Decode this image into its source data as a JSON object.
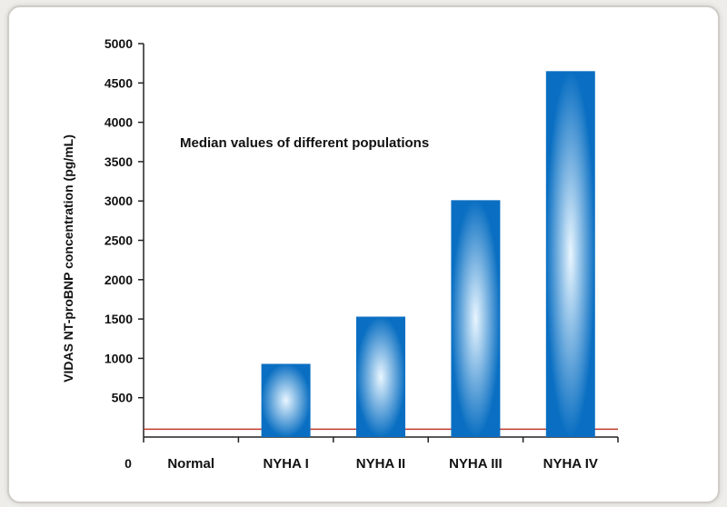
{
  "chart_data": {
    "type": "bar",
    "categories": [
      "Normal",
      "NYHA I",
      "NYHA II",
      "NYHA III",
      "NYHA IV"
    ],
    "values": [
      null,
      930,
      1530,
      3010,
      4650
    ],
    "ylabel": "VIDAS NT-proBNP concentration (pg/mL)",
    "annotation": "Median values of different populations",
    "ylim": [
      0,
      5000
    ],
    "yticks": [
      500,
      1000,
      1500,
      2000,
      2500,
      3000,
      3500,
      4000,
      4500,
      5000
    ],
    "zero_label": "0",
    "reference_line": 100,
    "grid": false,
    "colors": {
      "bar_edge": "#0a6fc2",
      "bar_glow": "#e9f6ff",
      "reference_line": "#c0392b",
      "axis": "#222222"
    }
  }
}
